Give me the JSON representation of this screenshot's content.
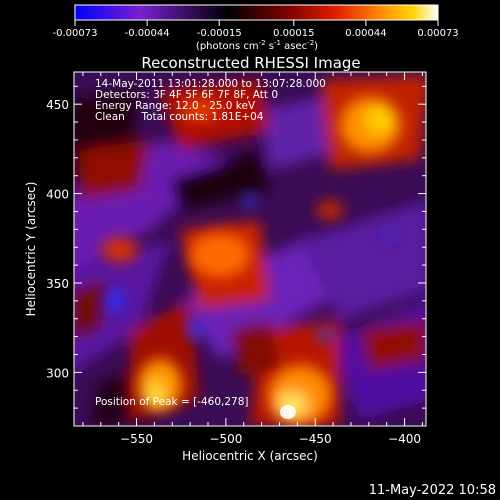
{
  "chart_data": {
    "type": "heatmap",
    "title": "Reconstructed RHESSI Image",
    "xlabel": "Heliocentric X (arcsec)",
    "ylabel": "Heliocentric Y (arcsec)",
    "xlim": [
      -585,
      -388
    ],
    "ylim": [
      270,
      468
    ],
    "x_ticks": [
      -550,
      -500,
      -450,
      -400
    ],
    "y_ticks": [
      300,
      350,
      400,
      450
    ],
    "colorbar": {
      "range": [
        -0.00073,
        0.00073
      ],
      "ticks": [
        "-0.00073",
        "-0.00044",
        "-0.00015",
        "0.00015",
        "0.00044",
        "0.00073"
      ],
      "tick_values": [
        -0.00073,
        -0.00044,
        -0.00015,
        0.00015,
        0.00044,
        0.00073
      ],
      "colormap": [
        "#0000ff",
        "#7a1fd0",
        "#000000",
        "#7a0000",
        "#e02000",
        "#ff8000",
        "#ffd700",
        "#ffffff"
      ],
      "unit_label": "(photons cm",
      "unit_exp1": "-2",
      "unit_mid": " s",
      "unit_exp2": "-1",
      "unit_mid2": " asec",
      "unit_exp3": "-2",
      "unit_end": ")"
    },
    "peak": [
      -460,
      278
    ],
    "grid": false
  },
  "info": {
    "line1": "14-May-2011 13:01:28.000 to 13:07:28.000",
    "line2": "Detectors: 3F 4F 5F 6F 7F 8F, Att 0",
    "line3": "Energy Range: 12.0 - 25.0 keV",
    "line4": "Clean     Total counts: 1.81E+04",
    "peak_text": "Position of Peak = [-460,278]"
  },
  "timestamp": "11-May-2022 10:58"
}
